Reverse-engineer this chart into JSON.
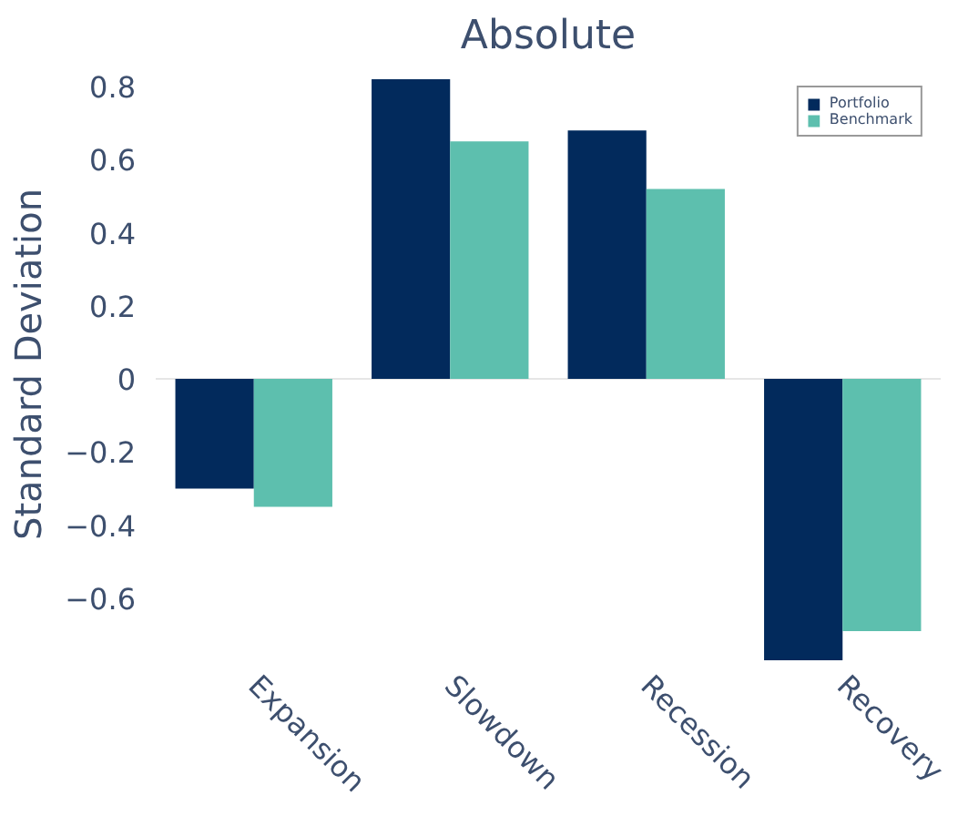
{
  "chart_data": {
    "type": "bar",
    "title": "Absolute",
    "ylabel": "Standard Deviation",
    "categories": [
      "Expansion",
      "Slowdown",
      "Recession",
      "Recovery"
    ],
    "series": [
      {
        "name": "Portfolio",
        "color": "#022a5c",
        "values": [
          -0.3,
          0.82,
          0.68,
          -0.77
        ]
      },
      {
        "name": "Benchmark",
        "color": "#5dbfae",
        "values": [
          -0.35,
          0.65,
          0.52,
          -0.69
        ]
      }
    ],
    "ylim": [
      -0.77,
      0.85
    ],
    "yticks": [
      {
        "value": -0.6,
        "label": "−0.6"
      },
      {
        "value": -0.4,
        "label": "−0.4"
      },
      {
        "value": -0.2,
        "label": "−0.2"
      },
      0,
      0.2,
      0.4,
      0.6,
      0.8
    ],
    "ref_lines": [
      {
        "axis": "y",
        "value": 0,
        "color": "#e6e6e6"
      }
    ],
    "grid": false,
    "legend": "top right"
  }
}
